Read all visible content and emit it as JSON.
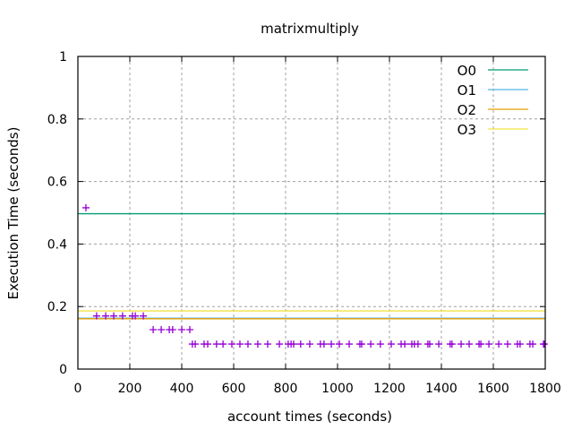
{
  "chart_data": {
    "type": "scatter",
    "title": "matrixmultiply",
    "xlabel": "account times (seconds)",
    "ylabel": "Execution Time (seconds)",
    "xlim": [
      0,
      1800
    ],
    "ylim": [
      0,
      1
    ],
    "xticks": [
      0,
      200,
      400,
      600,
      800,
      1000,
      1200,
      1400,
      1600,
      1800
    ],
    "yticks": [
      0,
      0.2,
      0.4,
      0.6,
      0.8,
      1
    ],
    "ytick_labels": [
      "0",
      "0.2",
      "0.4",
      "0.6",
      "0.8",
      "1"
    ],
    "grid": true,
    "legend_position": "top-right",
    "reference_lines": [
      {
        "name": "O0",
        "y": 0.497,
        "color": "#009e73"
      },
      {
        "name": "O1",
        "y": 0.163,
        "color": "#56b4e9"
      },
      {
        "name": "O2",
        "y": 0.161,
        "color": "#e69f00"
      },
      {
        "name": "O3",
        "y": 0.186,
        "color": "#f0e442"
      }
    ],
    "points": {
      "color": "#9400d3",
      "x": [
        31,
        72,
        107,
        138,
        172,
        210,
        221,
        252,
        290,
        321,
        352,
        365,
        400,
        431,
        441,
        452,
        486,
        500,
        534,
        559,
        593,
        624,
        655,
        693,
        731,
        776,
        810,
        821,
        831,
        858,
        893,
        934,
        948,
        976,
        1007,
        1045,
        1086,
        1093,
        1128,
        1165,
        1207,
        1245,
        1259,
        1286,
        1296,
        1310,
        1348,
        1355,
        1390,
        1434,
        1441,
        1476,
        1507,
        1545,
        1552,
        1583,
        1621,
        1655,
        1693,
        1703,
        1741,
        1752,
        1793,
        1796
      ],
      "y": [
        0.516,
        0.17,
        0.17,
        0.17,
        0.17,
        0.17,
        0.17,
        0.17,
        0.126,
        0.126,
        0.126,
        0.126,
        0.126,
        0.126,
        0.08,
        0.08,
        0.08,
        0.08,
        0.08,
        0.08,
        0.08,
        0.08,
        0.08,
        0.08,
        0.08,
        0.08,
        0.08,
        0.08,
        0.08,
        0.08,
        0.08,
        0.08,
        0.08,
        0.08,
        0.08,
        0.08,
        0.08,
        0.08,
        0.08,
        0.08,
        0.08,
        0.08,
        0.08,
        0.08,
        0.08,
        0.08,
        0.08,
        0.08,
        0.08,
        0.08,
        0.08,
        0.08,
        0.08,
        0.08,
        0.08,
        0.08,
        0.08,
        0.08,
        0.08,
        0.08,
        0.08,
        0.08,
        0.08,
        0.08
      ]
    }
  }
}
